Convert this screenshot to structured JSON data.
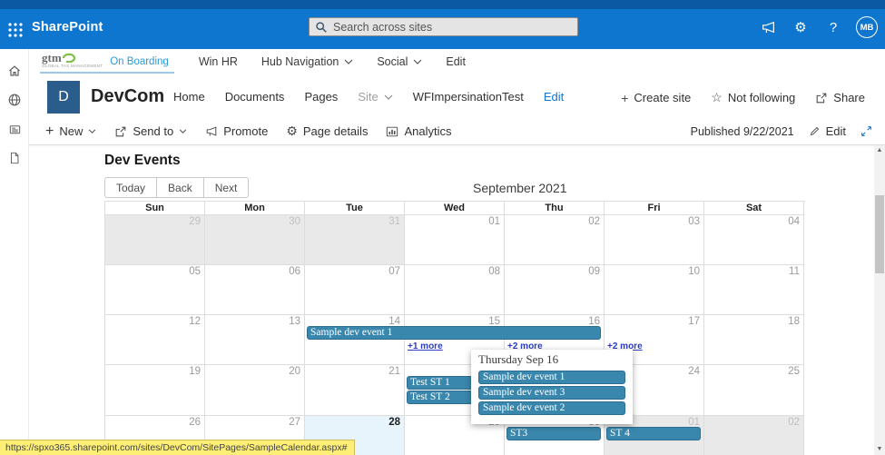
{
  "colors": {
    "accent": "#0f76d0",
    "top_strip": "#0b59a2",
    "event_fill": "#3a87ad",
    "event_border": "#2c6d91",
    "today_bg": "#e8f4fc",
    "other_month_bg": "#e9e9e9",
    "more_link": "#2b3cc4",
    "status_bg": "#fdee75",
    "logo_tile": "#2a5d8c",
    "logo_green": "#7dc242"
  },
  "suite_bar": {
    "app_name": "SharePoint",
    "search_placeholder": "Search across sites",
    "avatar_initials": "MB"
  },
  "hub_nav": {
    "logo_text": "gtm",
    "logo_tagline": "GLOBAL TAX MANAGEMENT",
    "active_item": "On Boarding",
    "items": [
      {
        "label": "Win HR"
      },
      {
        "label": "Hub Navigation"
      },
      {
        "label": "Social"
      },
      {
        "label": "Edit"
      }
    ]
  },
  "site_header": {
    "logo_letter": "D",
    "site_title": "DevCom",
    "nav": [
      "Home",
      "Documents",
      "Pages",
      "Site",
      "WFImpersinationTest",
      "Edit"
    ],
    "actions": [
      "Create site",
      "Not following",
      "Share"
    ]
  },
  "command_bar": {
    "items": [
      "New",
      "Send to",
      "Promote",
      "Page details",
      "Analytics"
    ],
    "published_label": "Published 9/22/2021",
    "edit_label": "Edit"
  },
  "page": {
    "title": "Dev Events"
  },
  "calendar": {
    "toolbar_buttons": [
      "Today",
      "Back",
      "Next"
    ],
    "month_title": "September 2021",
    "day_headers": [
      "Sun",
      "Mon",
      "Tue",
      "Wed",
      "Thu",
      "Fri",
      "Sat"
    ],
    "weeks": [
      [
        "29",
        "30",
        "31",
        "01",
        "02",
        "03",
        "04"
      ],
      [
        "05",
        "06",
        "07",
        "08",
        "09",
        "10",
        "11"
      ],
      [
        "12",
        "13",
        "14",
        "15",
        "16",
        "17",
        "18"
      ],
      [
        "19",
        "20",
        "21",
        "22",
        "23",
        "24",
        "25"
      ],
      [
        "26",
        "27",
        "28",
        "29",
        "30",
        "01",
        "02"
      ]
    ],
    "other_month_cells": [
      [
        0,
        0
      ],
      [
        0,
        1
      ],
      [
        0,
        2
      ],
      [
        4,
        5
      ],
      [
        4,
        6
      ]
    ],
    "today_cell": [
      4,
      2
    ],
    "events": [
      {
        "label": "Sample dev event 1",
        "week": 2,
        "day": 2,
        "span": 3,
        "slot": 0
      },
      {
        "label": "Test ST 1",
        "week": 3,
        "day": 3,
        "span": 2,
        "slot": 0
      },
      {
        "label": "Test ST 2",
        "week": 3,
        "day": 3,
        "span": 2,
        "slot": 1
      },
      {
        "label": "ST3",
        "week": 4,
        "day": 4,
        "span": 1,
        "slot": 0
      },
      {
        "label": "ST 4",
        "week": 4,
        "day": 5,
        "span": 1,
        "slot": 0
      }
    ],
    "more_links": [
      {
        "label": "+1 more",
        "week": 2,
        "day": 3
      },
      {
        "label": "+2 more",
        "week": 2,
        "day": 4
      },
      {
        "label": "+2 more",
        "week": 2,
        "day": 5
      }
    ],
    "popup": {
      "title": "Thursday Sep 16",
      "events": [
        "Sample dev event 1",
        "Sample dev event 3",
        "Sample dev event 2"
      ]
    }
  },
  "status_bar": {
    "url": "https://spxo365.sharepoint.com/sites/DevCom/SitePages/SampleCalendar.aspx#"
  }
}
